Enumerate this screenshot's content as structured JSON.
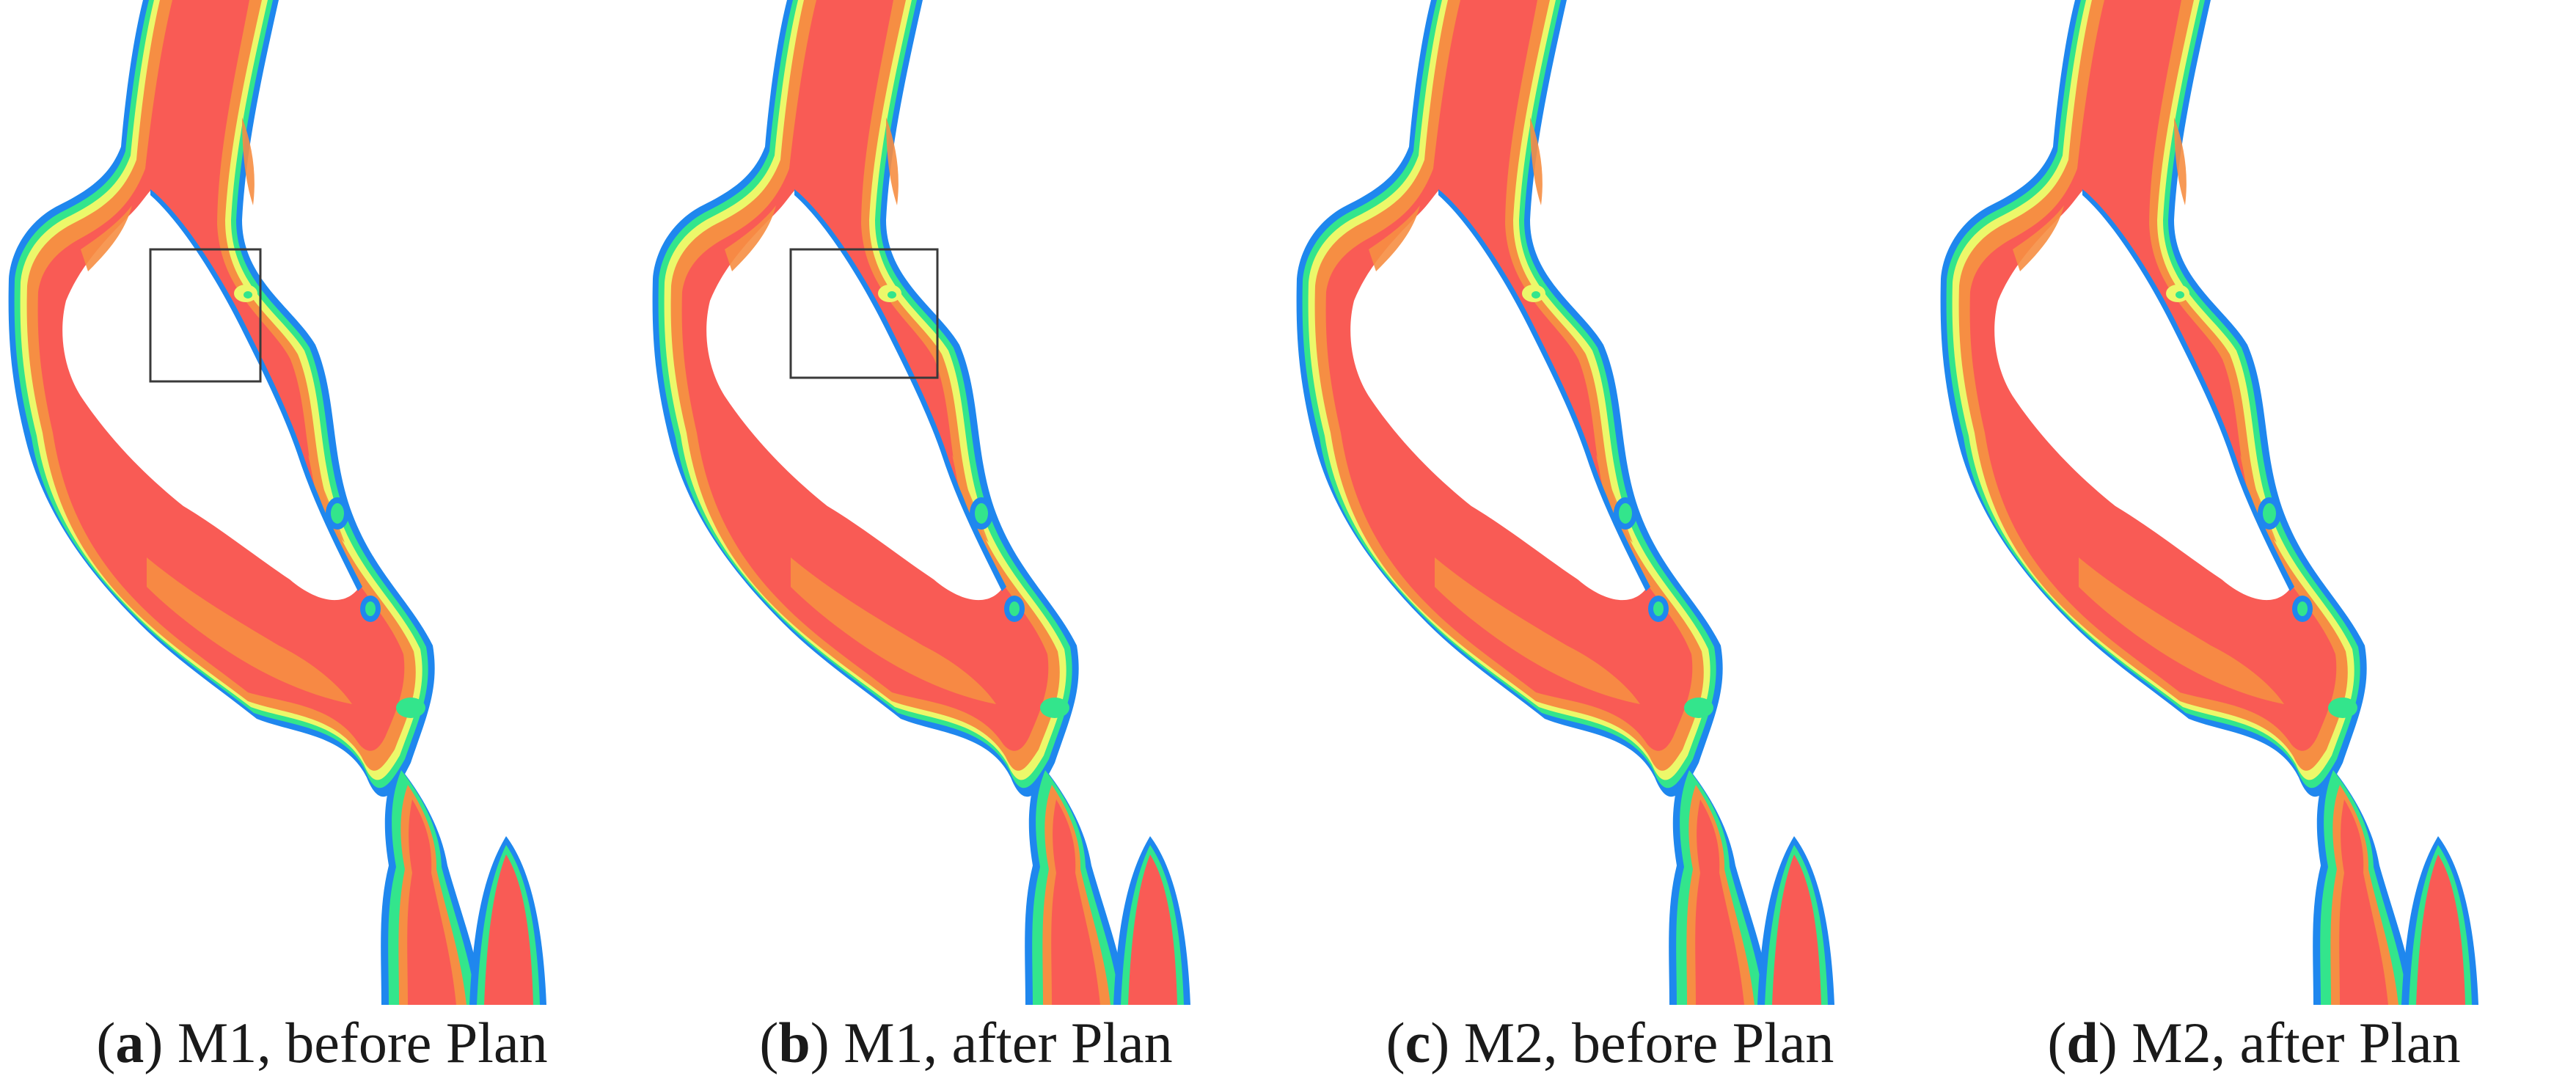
{
  "colors": {
    "deep": "#f95b55",
    "mid_deep": "#f68e43",
    "mid": "#f7c243",
    "shallow_yellow": "#ecf86a",
    "shallow_green": "#33e58c",
    "edge_blue": "#1f87ee",
    "box": "#3a3a3a"
  },
  "panels": [
    {
      "letter": "a",
      "text": "M1, before Plan",
      "has_box": true
    },
    {
      "letter": "b",
      "text": "M1, after Plan",
      "has_box": true
    },
    {
      "letter": "c",
      "text": "M2, before Plan",
      "has_box": false
    },
    {
      "letter": "d",
      "text": "M2, after Plan",
      "has_box": false
    }
  ]
}
